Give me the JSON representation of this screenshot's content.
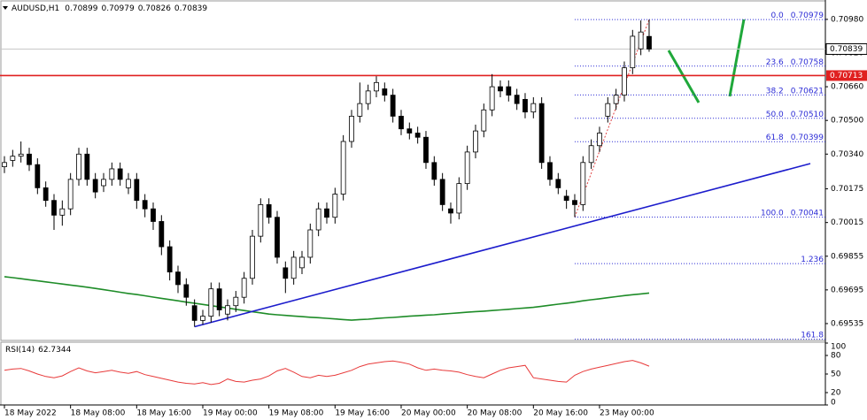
{
  "chart_data": {
    "type": "candlestick",
    "title": "AUDUSD,H1",
    "categories": [
      "18 May 2022",
      null,
      null,
      null,
      null,
      null,
      null,
      null,
      "18 May 08:00",
      null,
      null,
      null,
      null,
      null,
      null,
      null,
      "18 May 16:00",
      null,
      null,
      null,
      null,
      null,
      null,
      null,
      "19 May 00:00",
      null,
      null,
      null,
      null,
      null,
      null,
      null,
      "19 May 08:00",
      null,
      null,
      null,
      null,
      null,
      null,
      null,
      "19 May 16:00",
      null,
      null,
      null,
      null,
      null,
      null,
      null,
      "20 May 00:00",
      null,
      null,
      null,
      null,
      null,
      null,
      null,
      "20 May 08:00",
      null,
      null,
      null,
      null,
      null,
      null,
      null,
      "20 May 16:00",
      null,
      null,
      null,
      null,
      null,
      null,
      null,
      "23 May 00:00",
      null,
      null,
      null,
      null,
      null,
      null
    ],
    "ohlc": [
      [
        0.7028,
        0.7033,
        0.7025,
        0.703
      ],
      [
        0.7031,
        0.7036,
        0.7028,
        0.7033
      ],
      [
        0.7033,
        0.704,
        0.703,
        0.7034
      ],
      [
        0.7034,
        0.7037,
        0.7026,
        0.7029
      ],
      [
        0.7029,
        0.7032,
        0.7015,
        0.7018
      ],
      [
        0.7018,
        0.7021,
        0.7009,
        0.7012
      ],
      [
        0.7012,
        0.7015,
        0.6998,
        0.7005
      ],
      [
        0.7005,
        0.7012,
        0.7,
        0.7008
      ],
      [
        0.7008,
        0.7025,
        0.7005,
        0.7022
      ],
      [
        0.7022,
        0.7037,
        0.7019,
        0.7034
      ],
      [
        0.7034,
        0.7037,
        0.7019,
        0.7022
      ],
      [
        0.7022,
        0.7025,
        0.7013,
        0.7016
      ],
      [
        0.7019,
        0.7025,
        0.7016,
        0.7022
      ],
      [
        0.7022,
        0.703,
        0.7019,
        0.7027
      ],
      [
        0.7027,
        0.703,
        0.7019,
        0.7022
      ],
      [
        0.7018,
        0.7025,
        0.7015,
        0.7022
      ],
      [
        0.7022,
        0.7025,
        0.7008,
        0.7012
      ],
      [
        0.7012,
        0.7015,
        0.7004,
        0.7008
      ],
      [
        0.7008,
        0.7011,
        0.6998,
        0.7002
      ],
      [
        0.7002,
        0.7005,
        0.6986,
        0.699
      ],
      [
        0.699,
        0.6993,
        0.6974,
        0.6978
      ],
      [
        0.6978,
        0.6981,
        0.6968,
        0.6972
      ],
      [
        0.6972,
        0.6975,
        0.6962,
        0.6966
      ],
      [
        0.6962,
        0.6965,
        0.6952,
        0.6955
      ],
      [
        0.6955,
        0.696,
        0.6953,
        0.6957
      ],
      [
        0.6957,
        0.6973,
        0.6954,
        0.697
      ],
      [
        0.697,
        0.6973,
        0.6957,
        0.696
      ],
      [
        0.6958,
        0.6965,
        0.6955,
        0.6962
      ],
      [
        0.6962,
        0.6969,
        0.6959,
        0.6966
      ],
      [
        0.6966,
        0.6978,
        0.6963,
        0.6975
      ],
      [
        0.6975,
        0.6998,
        0.6972,
        0.6995
      ],
      [
        0.6995,
        0.7013,
        0.6992,
        0.701
      ],
      [
        0.701,
        0.7013,
        0.7001,
        0.7004
      ],
      [
        0.7004,
        0.7007,
        0.6982,
        0.6985
      ],
      [
        0.698,
        0.6983,
        0.6968,
        0.6975
      ],
      [
        0.6975,
        0.6988,
        0.6972,
        0.6985
      ],
      [
        0.698,
        0.6988,
        0.6977,
        0.6985
      ],
      [
        0.6985,
        0.7001,
        0.6982,
        0.6998
      ],
      [
        0.6998,
        0.7011,
        0.6995,
        0.7008
      ],
      [
        0.7008,
        0.7011,
        0.7001,
        0.7004
      ],
      [
        0.7004,
        0.7018,
        0.7001,
        0.7015
      ],
      [
        0.7015,
        0.7043,
        0.7012,
        0.704
      ],
      [
        0.704,
        0.7055,
        0.7037,
        0.7052
      ],
      [
        0.7052,
        0.7068,
        0.7049,
        0.7058
      ],
      [
        0.7058,
        0.7067,
        0.7055,
        0.7064
      ],
      [
        0.7064,
        0.7071,
        0.7061,
        0.7068
      ],
      [
        0.7065,
        0.7068,
        0.7059,
        0.7062
      ],
      [
        0.7062,
        0.7065,
        0.7049,
        0.7052
      ],
      [
        0.7052,
        0.7055,
        0.7043,
        0.7046
      ],
      [
        0.7046,
        0.7049,
        0.7041,
        0.7044
      ],
      [
        0.7044,
        0.7047,
        0.7039,
        0.7042
      ],
      [
        0.7042,
        0.7045,
        0.7027,
        0.703
      ],
      [
        0.703,
        0.7033,
        0.7019,
        0.7022
      ],
      [
        0.7022,
        0.7025,
        0.7007,
        0.701
      ],
      [
        0.7008,
        0.7011,
        0.7001,
        0.7006
      ],
      [
        0.7006,
        0.7023,
        0.7003,
        0.702
      ],
      [
        0.702,
        0.7038,
        0.7017,
        0.7035
      ],
      [
        0.7035,
        0.7048,
        0.7032,
        0.7045
      ],
      [
        0.7045,
        0.7058,
        0.7042,
        0.7055
      ],
      [
        0.7055,
        0.7072,
        0.7052,
        0.7066
      ],
      [
        0.7066,
        0.7069,
        0.7061,
        0.7064
      ],
      [
        0.7066,
        0.7069,
        0.7059,
        0.7062
      ],
      [
        0.7062,
        0.7065,
        0.7055,
        0.7058
      ],
      [
        0.706,
        0.7063,
        0.7051,
        0.7054
      ],
      [
        0.7054,
        0.7061,
        0.7051,
        0.7058
      ],
      [
        0.7058,
        0.7061,
        0.7027,
        0.703
      ],
      [
        0.703,
        0.7033,
        0.7019,
        0.7022
      ],
      [
        0.7022,
        0.7025,
        0.7015,
        0.7018
      ],
      [
        0.7014,
        0.7017,
        0.7008,
        0.7012
      ],
      [
        0.7012,
        0.7015,
        0.70041,
        0.701
      ],
      [
        0.701,
        0.7033,
        0.7007,
        0.703
      ],
      [
        0.703,
        0.7041,
        0.7027,
        0.7038
      ],
      [
        0.7038,
        0.7047,
        0.7035,
        0.7044
      ],
      [
        0.7052,
        0.7061,
        0.7049,
        0.7058
      ],
      [
        0.7058,
        0.7065,
        0.7055,
        0.7062
      ],
      [
        0.7062,
        0.7078,
        0.7059,
        0.7075
      ],
      [
        0.7075,
        0.7093,
        0.7072,
        0.709
      ],
      [
        0.7084,
        0.70975,
        0.7081,
        0.7092
      ],
      [
        0.70899,
        0.70979,
        0.70826,
        0.70839
      ]
    ],
    "up_color": "#ffffff",
    "down_color": "#000000",
    "outline_color": "#000000",
    "ylim": [
      0.69455,
      0.71072
    ],
    "yticks": [
      {
        "value": 0.7098,
        "label": "0.70980"
      },
      {
        "value": 0.7082,
        "label": "0.70820"
      },
      {
        "value": 0.7066,
        "label": "0.70660"
      },
      {
        "value": 0.705,
        "label": "0.70500"
      },
      {
        "value": 0.7034,
        "label": "0.70340"
      },
      0.70175,
      0.70015,
      0.69855,
      0.69695,
      0.69535
    ],
    "current_price": 0.70839,
    "hline": {
      "value": 0.70713,
      "color": "#e02020"
    },
    "moving_average": {
      "color": "#1e8c28",
      "values": [
        0.69758,
        0.69753,
        0.69748,
        0.69743,
        0.69738,
        0.69733,
        0.69728,
        0.69723,
        0.69718,
        0.69713,
        0.69708,
        0.69702,
        0.69696,
        0.6969,
        0.69684,
        0.69678,
        0.69673,
        0.69667,
        0.69661,
        0.69655,
        0.69649,
        0.69643,
        0.69637,
        0.69632,
        0.69626,
        0.6962,
        0.69614,
        0.69609,
        0.69603,
        0.69597,
        0.69591,
        0.69586,
        0.6958,
        0.69577,
        0.69574,
        0.69571,
        0.69568,
        0.69565,
        0.69563,
        0.6956,
        0.69557,
        0.69554,
        0.69551,
        0.69554,
        0.69556,
        0.69559,
        0.69562,
        0.69564,
        0.69567,
        0.6957,
        0.69572,
        0.69575,
        0.69577,
        0.6958,
        0.69583,
        0.69586,
        0.69589,
        0.69592,
        0.69594,
        0.69597,
        0.696,
        0.69603,
        0.69606,
        0.69609,
        0.69612,
        0.69617,
        0.69622,
        0.69627,
        0.69632,
        0.69637,
        0.69643,
        0.69648,
        0.69653,
        0.69658,
        0.69663,
        0.69668,
        0.69672,
        0.69676,
        0.6968
      ]
    },
    "trendline": {
      "color": "#1c1ccc",
      "x": [
        23,
        97.5
      ],
      "y": [
        0.6952,
        0.70295
      ]
    },
    "fibonacci": {
      "color": "#2b2bd6",
      "diagonal_color": "#e04040",
      "anchor_x": [
        69,
        78
      ],
      "levels": [
        {
          "level": "0.0",
          "price": 0.70979
        },
        {
          "level": "23.6",
          "price": 0.70758
        },
        {
          "level": "38.2",
          "price": 0.70621
        },
        {
          "level": "50.0",
          "price": 0.7051,
          "price_label": "0.70510"
        },
        {
          "level": "61.8",
          "price": 0.70399
        },
        {
          "level": "100.0",
          "price": 0.70041
        },
        {
          "level": "1.236",
          "price": 0.6982
        },
        {
          "level": "161.8",
          "price": 0.69461
        }
      ]
    },
    "rsi": {
      "title": "RSI(14)",
      "color": "#e83a3a",
      "ylim": [
        0,
        100
      ],
      "yticks": [
        100,
        80,
        50,
        20,
        0
      ],
      "values": [
        56,
        58,
        59,
        55,
        50,
        46,
        44,
        47,
        54,
        60,
        55,
        52,
        54,
        56,
        53,
        51,
        54,
        49,
        46,
        43,
        40,
        37,
        35,
        34,
        36,
        33,
        35,
        42,
        38,
        37,
        40,
        42,
        47,
        55,
        59,
        53,
        46,
        44,
        48,
        46,
        48,
        52,
        56,
        62,
        66,
        68,
        70,
        71,
        69,
        66,
        60,
        56,
        58,
        56,
        55,
        53,
        49,
        46,
        44,
        50,
        56,
        60,
        62,
        64,
        44,
        42,
        40,
        38,
        37,
        48,
        54,
        58,
        61,
        64,
        67,
        70,
        72,
        68,
        62.7344
      ]
    }
  }
}
